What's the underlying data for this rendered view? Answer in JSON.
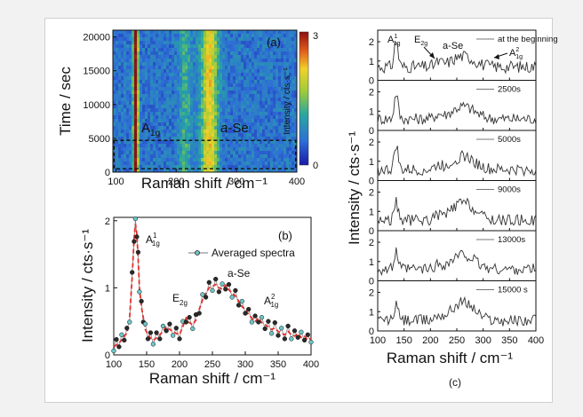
{
  "figure_label_c": "(c)",
  "chart_data": [
    {
      "id": "a",
      "type": "heatmap",
      "panel_label": "(a)",
      "xlabel": "Raman shift / cm⁻¹",
      "ylabel": "Time / sec",
      "xlim": [
        95,
        400
      ],
      "ylim": [
        0,
        21000
      ],
      "xticks": [
        "100",
        "200",
        "300",
        "400"
      ],
      "yticks": [
        "0",
        "5000",
        "10000",
        "15000",
        "20000"
      ],
      "colorbar": {
        "label": "Intensity / cts·s⁻¹",
        "min": "0",
        "max": "3"
      },
      "annotations": [
        {
          "text": "A",
          "sub": "1g"
        },
        {
          "text": "a",
          "rest": "-Se"
        }
      ],
      "intensity_bands": [
        {
          "center": 133,
          "width": 4,
          "level": 2.6
        },
        {
          "center": 255,
          "width": 14,
          "level": 1.5
        },
        {
          "center": 215,
          "width": 10,
          "level": 0.6
        }
      ],
      "highlight_box": {
        "x_range": [
          97,
          398
        ],
        "y_range": [
          500,
          4700
        ]
      }
    },
    {
      "id": "b",
      "type": "line",
      "panel_label": "(b)",
      "xlabel": "Raman shift / cm⁻¹",
      "ylabel": "Intensity / cts·s⁻¹",
      "xlim": [
        100,
        400
      ],
      "ylim": [
        0,
        2.05
      ],
      "xticks": [
        "100",
        "150",
        "200",
        "250",
        "300",
        "350",
        "400"
      ],
      "yticks": [
        "0",
        "1",
        "2"
      ],
      "legend": "Averaged spectra",
      "annotations": [
        {
          "text": "A",
          "sup": "1",
          "sub": "1g"
        },
        {
          "text": "a-Se"
        },
        {
          "text": "E",
          "sub": "2g"
        },
        {
          "text": "A",
          "sup": "2",
          "sub": "1g"
        }
      ],
      "series": [
        {
          "name": "Averaged spectra",
          "x": [
            100,
            104,
            108,
            112,
            116,
            120,
            124,
            128,
            131,
            133,
            135,
            137,
            139,
            142,
            145,
            148,
            152,
            156,
            160,
            165,
            170,
            175,
            180,
            185,
            190,
            195,
            200,
            205,
            210,
            215,
            220,
            225,
            230,
            235,
            240,
            245,
            250,
            255,
            260,
            265,
            270,
            275,
            280,
            285,
            290,
            295,
            300,
            305,
            310,
            315,
            320,
            325,
            330,
            335,
            340,
            345,
            350,
            355,
            360,
            365,
            370,
            375,
            380,
            385,
            390,
            395,
            400
          ],
          "values": [
            0.12,
            0.15,
            0.18,
            0.22,
            0.28,
            0.32,
            0.55,
            1.15,
            1.75,
            1.95,
            1.82,
            1.45,
            1.0,
            0.72,
            0.55,
            0.38,
            0.3,
            0.25,
            0.22,
            0.25,
            0.3,
            0.35,
            0.42,
            0.38,
            0.35,
            0.32,
            0.3,
            0.42,
            0.55,
            0.48,
            0.45,
            0.52,
            0.68,
            0.82,
            0.92,
            1.0,
            1.02,
            1.05,
            1.0,
            0.98,
            1.04,
            0.97,
            0.92,
            0.88,
            0.8,
            0.72,
            0.68,
            0.6,
            0.55,
            0.5,
            0.55,
            0.48,
            0.45,
            0.42,
            0.38,
            0.4,
            0.35,
            0.32,
            0.3,
            0.35,
            0.3,
            0.28,
            0.32,
            0.26,
            0.28,
            0.22,
            0.25
          ]
        }
      ]
    },
    {
      "id": "c",
      "type": "line",
      "xlabel": "Raman shift / cm⁻¹",
      "ylabel": "Intensity / cts·s⁻¹",
      "xlim": [
        100,
        400
      ],
      "ylim": [
        0,
        2.6
      ],
      "xticks": [
        "100",
        "150",
        "200",
        "250",
        "300",
        "350",
        "400"
      ],
      "yticks": [
        "0",
        "1",
        "2"
      ],
      "panel_annotations": [
        {
          "text": "A",
          "sup": "1",
          "sub": "1g"
        },
        {
          "text": "E",
          "sub": "2g"
        },
        {
          "text": "a-Se"
        },
        {
          "text": "A",
          "sup": "2",
          "sub": "1g"
        }
      ],
      "series": [
        {
          "name": "at the beginning",
          "noise": 0.32,
          "peak": 1.4,
          "band": 0.55,
          "base": 0.7
        },
        {
          "name": "2500s",
          "noise": 0.3,
          "peak": 1.35,
          "band": 0.65,
          "base": 0.6
        },
        {
          "name": "5000s",
          "noise": 0.3,
          "peak": 1.3,
          "band": 0.7,
          "base": 0.55
        },
        {
          "name": "9000s",
          "noise": 0.3,
          "peak": 0.9,
          "band": 0.9,
          "base": 0.55
        },
        {
          "name": "13000s",
          "noise": 0.3,
          "peak": 0.9,
          "band": 0.75,
          "base": 0.6
        },
        {
          "name": "15000 s",
          "noise": 0.3,
          "peak": 0.85,
          "band": 0.95,
          "base": 0.55
        }
      ]
    }
  ]
}
